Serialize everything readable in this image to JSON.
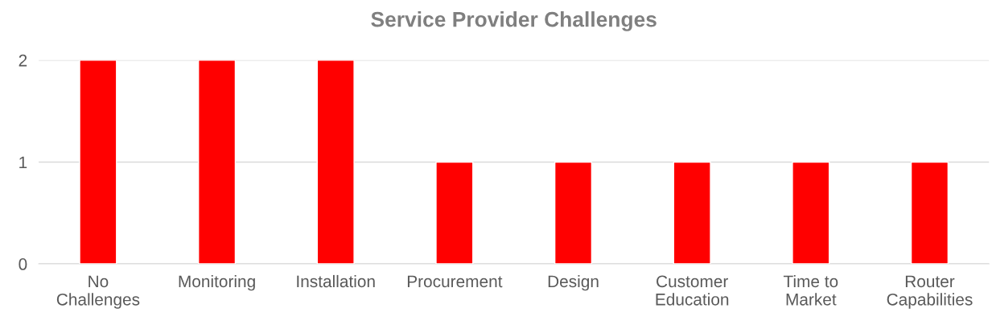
{
  "chart_data": {
    "type": "bar",
    "title": "Service Provider Challenges",
    "categories": [
      "No\nChallenges",
      "Monitoring",
      "Installation",
      "Procurement",
      "Design",
      "Customer\nEducation",
      "Time to\nMarket",
      "Router\nCapabilities"
    ],
    "values": [
      2,
      2,
      2,
      1,
      1,
      1,
      1,
      1
    ],
    "color": "#ff0000",
    "ylim": [
      0,
      2
    ],
    "yticks": [
      0,
      1,
      2
    ],
    "grid": "y"
  }
}
